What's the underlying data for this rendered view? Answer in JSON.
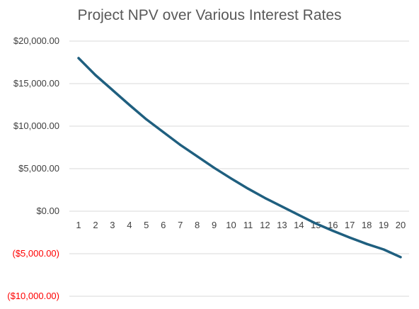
{
  "chart_data": {
    "type": "line",
    "title": "Project NPV over Various Interest Rates",
    "xlabel": "",
    "ylabel": "",
    "x": [
      1,
      2,
      3,
      4,
      5,
      6,
      7,
      8,
      9,
      10,
      11,
      12,
      13,
      14,
      15,
      16,
      17,
      18,
      19,
      20
    ],
    "series": [
      {
        "name": "",
        "values": [
          18000,
          16000,
          14250,
          12500,
          10800,
          9300,
          7800,
          6450,
          5100,
          3850,
          2650,
          1550,
          550,
          -450,
          -1450,
          -2300,
          -3100,
          -3850,
          -4500,
          -5400
        ]
      }
    ],
    "ylim": [
      -10000,
      20000
    ],
    "yticks": [
      20000,
      15000,
      10000,
      5000,
      0,
      -5000,
      -10000
    ],
    "ytick_labels": [
      "$20,000.00",
      "$15,000.00",
      "$10,000.00",
      "$5,000.00",
      "$0.00",
      "($5,000.00)",
      "($10,000.00)"
    ],
    "xtick_labels": [
      "1",
      "2",
      "3",
      "4",
      "5",
      "6",
      "7",
      "8",
      "9",
      "10",
      "11",
      "12",
      "13",
      "14",
      "15",
      "16",
      "17",
      "18",
      "19",
      "20"
    ],
    "grid": true,
    "legend": "none",
    "colors": {
      "line": "#1f5f7f",
      "grid": "#d9d9d9",
      "positive_label": "#404040",
      "negative_label": "#ff0000",
      "title": "#595959"
    }
  }
}
